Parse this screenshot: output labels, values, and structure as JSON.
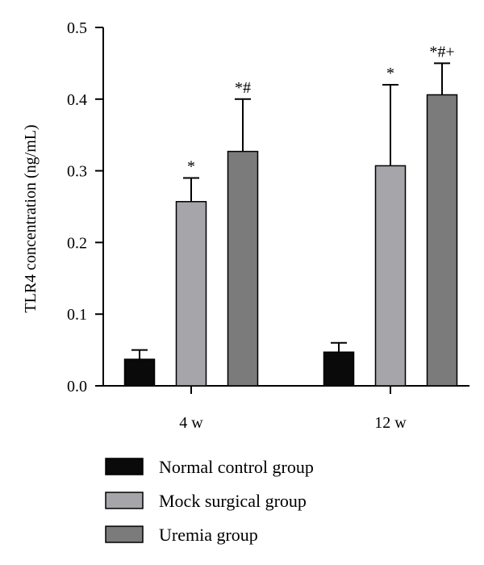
{
  "chart_data": {
    "type": "bar",
    "ylabel": "TLR4 concentration (ng/mL)",
    "xlabel": "",
    "ylim": [
      0,
      0.5
    ],
    "yticks": [
      0.0,
      0.1,
      0.2,
      0.3,
      0.4,
      0.5
    ],
    "ytick_labels": [
      "0.0",
      "0.1",
      "0.2",
      "0.3",
      "0.4",
      "0.5"
    ],
    "categories": [
      "4 w",
      "12 w"
    ],
    "grid": false,
    "legend_position": "bottom",
    "series": [
      {
        "name": "Normal control group",
        "color": "#0a0a0a",
        "values": [
          0.037,
          0.047
        ],
        "error_upper": [
          0.05,
          0.06
        ],
        "annotations": [
          "",
          ""
        ]
      },
      {
        "name": "Mock surgical group",
        "color": "#a6a6aa",
        "values": [
          0.257,
          0.307
        ],
        "error_upper": [
          0.29,
          0.42
        ],
        "annotations": [
          "*",
          "*"
        ]
      },
      {
        "name": "Uremia group",
        "color": "#7b7b7b",
        "values": [
          0.327,
          0.406
        ],
        "error_upper": [
          0.4,
          0.45
        ],
        "annotations": [
          "*#",
          "*#+"
        ]
      }
    ]
  }
}
